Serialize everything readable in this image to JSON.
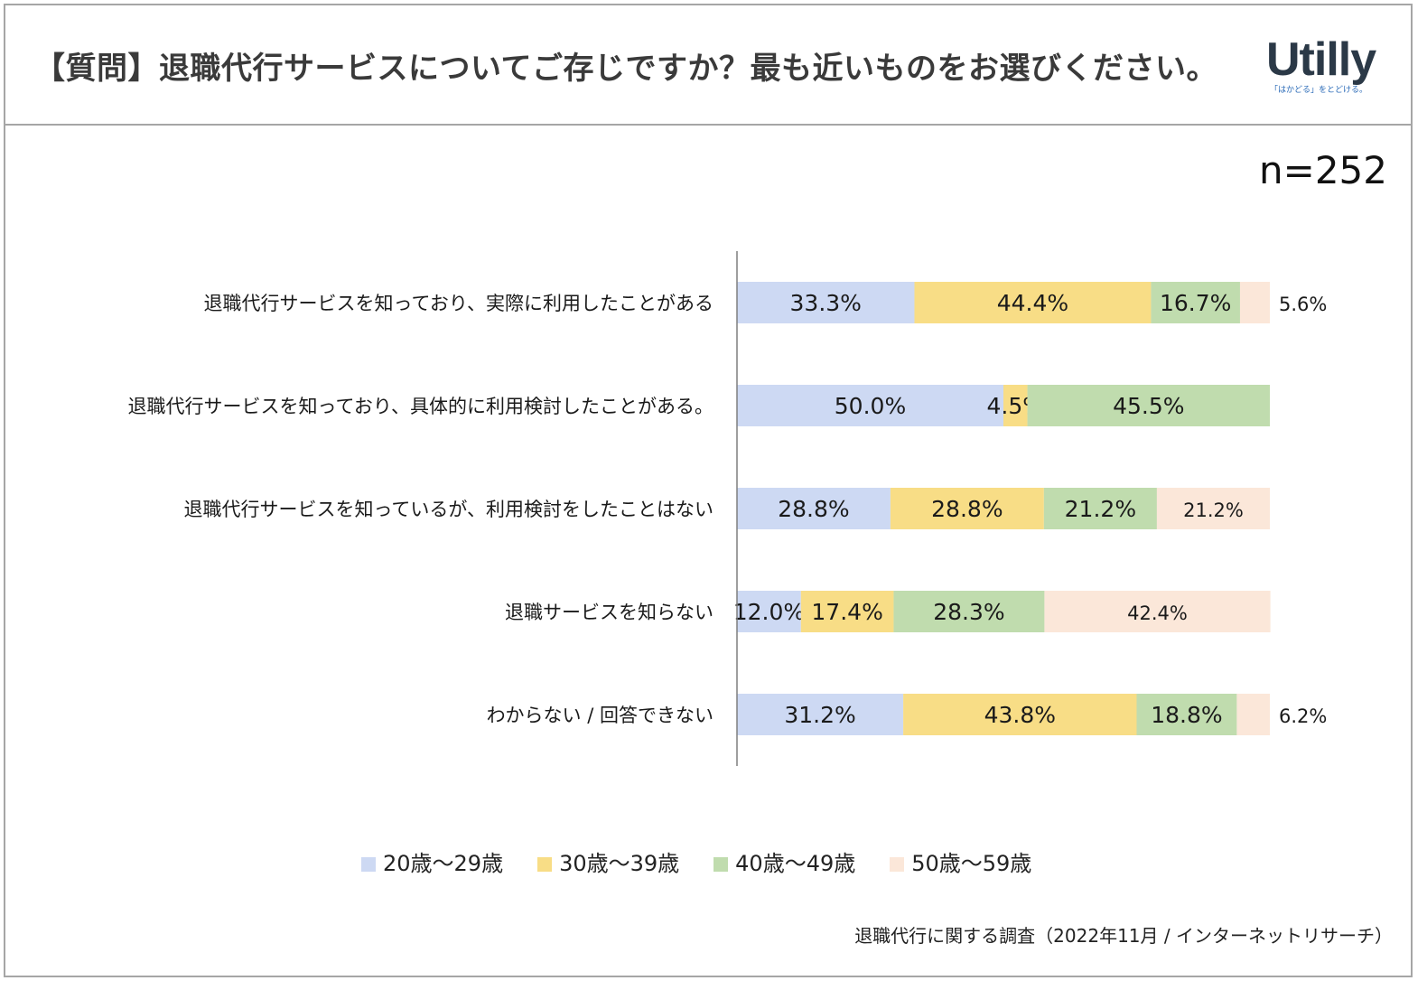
{
  "header": {
    "title": "【質問】退職代行サービスについてご存じですか？最も近いものをお選びください。",
    "logo_text": "Utilly",
    "logo_tagline": "「はかどる」をとどける。"
  },
  "n_label": "n=252",
  "source": "退職代行に関する調査（2022年11月 / インターネットリサーチ）",
  "colors": {
    "series": [
      "#cdd9f3",
      "#f8dd86",
      "#c0dcae",
      "#fbe7d9"
    ],
    "axis": "#7f7f7f"
  },
  "chart_data": {
    "type": "bar",
    "orientation": "horizontal",
    "stacked": true,
    "xlim": [
      0,
      100
    ],
    "legend_position": "bottom",
    "categories": [
      "退職代行サービスを知っており、実際に利用したことがある",
      "退職代行サービスを知っており、具体的に利用検討したことがある。",
      "退職代行サービスを知っているが、利用検討をしたことはない",
      "退職サービスを知らない",
      "わからない / 回答できない"
    ],
    "series": [
      {
        "name": "20歳〜29歳",
        "values": [
          33.3,
          50.0,
          28.8,
          12.0,
          31.2
        ],
        "labels": [
          "33.3%",
          "50.0%",
          "28.8%",
          "12.0%",
          "31.2%"
        ]
      },
      {
        "name": "30歳〜39歳",
        "values": [
          44.4,
          4.5,
          28.8,
          17.4,
          43.8
        ],
        "labels": [
          "44.4%",
          "4.5%",
          "28.8%",
          "17.4%",
          "43.8%"
        ]
      },
      {
        "name": "40歳〜49歳",
        "values": [
          16.7,
          45.5,
          21.2,
          28.3,
          18.8
        ],
        "labels": [
          "16.7%",
          "45.5%",
          "21.2%",
          "28.3%",
          "18.8%"
        ]
      },
      {
        "name": "50歳〜59歳",
        "values": [
          5.6,
          0,
          21.2,
          42.4,
          6.2
        ],
        "labels": [
          "5.6%",
          "",
          "21.2%",
          "42.4%",
          "6.2%"
        ]
      }
    ]
  }
}
